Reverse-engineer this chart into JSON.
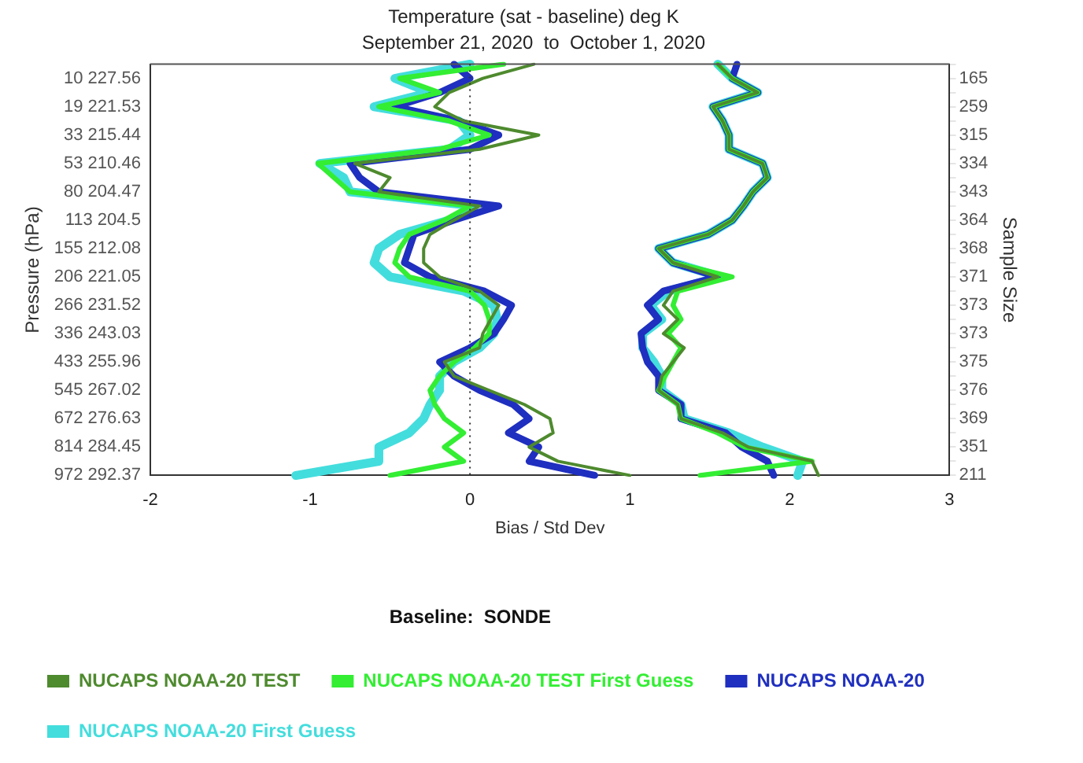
{
  "chart_data": {
    "type": "line",
    "orientation": "horizontal",
    "title": "Temperature (sat - baseline) deg K",
    "subtitle": "September 21, 2020  to  October 1, 2020",
    "xlabel": "Bias / Std Dev",
    "ylabel": "Pressure (hPa)",
    "y2label": "Sample Size",
    "legend_title": "Baseline:  SONDE",
    "legend": "bottom",
    "grid": false,
    "marker": "none",
    "line_style": "solid",
    "categories": [
      null,
      "10 227.56",
      null,
      "19 221.53",
      null,
      "33 215.44",
      null,
      "53 210.46",
      null,
      "80 204.47",
      null,
      "113 204.5",
      null,
      "155 212.08",
      null,
      "206 221.05",
      null,
      "266 231.52",
      null,
      "336 243.03",
      null,
      "433 255.96",
      null,
      "545 267.02",
      null,
      "672 276.63",
      null,
      "814 284.45",
      null,
      "972 292.37"
    ],
    "y2_categories": [
      null,
      "165",
      null,
      "259",
      null,
      "315",
      null,
      "334",
      null,
      "343",
      null,
      "364",
      null,
      "368",
      null,
      "371",
      null,
      "373",
      null,
      "373",
      null,
      "375",
      null,
      "376",
      null,
      "369",
      null,
      "351",
      null,
      "211"
    ],
    "xlim": [
      -2,
      3
    ],
    "xticks": [
      -2,
      -1,
      0,
      1,
      2,
      3
    ],
    "ref_lines": [
      {
        "axis": "x",
        "value": 0,
        "color": "#333333",
        "line_style": "dotted"
      }
    ],
    "series": [
      {
        "name": "NUCAPS NOAA-20 TEST",
        "color": "#4e8a2e",
        "values": [
          0.4,
          0.08,
          -0.13,
          -0.22,
          -0.04,
          0.43,
          0.06,
          -0.72,
          -0.5,
          -0.57,
          0.06,
          -0.1,
          -0.25,
          -0.29,
          -0.29,
          -0.19,
          0.06,
          0.18,
          0.13,
          0.08,
          0.06,
          -0.16,
          -0.1,
          0.12,
          0.34,
          0.5,
          0.52,
          0.37,
          0.55,
          1.0
        ]
      },
      {
        "color": "#4e8a2e",
        "values": [
          1.55,
          1.64,
          1.8,
          1.52,
          1.58,
          1.62,
          1.62,
          1.83,
          1.86,
          1.77,
          1.71,
          1.64,
          1.49,
          1.18,
          1.27,
          1.55,
          1.27,
          1.21,
          1.3,
          1.21,
          1.34,
          1.27,
          1.2,
          1.18,
          1.3,
          1.32,
          1.58,
          1.74,
          2.14,
          2.18
        ]
      },
      {
        "name": "NUCAPS NOAA-20 TEST First Guess",
        "color": "#33ee33",
        "values": [
          0.21,
          -0.44,
          -0.19,
          -0.57,
          -0.13,
          0.12,
          -0.19,
          -0.95,
          -0.85,
          -0.75,
          0,
          -0.16,
          -0.38,
          -0.44,
          -0.47,
          -0.38,
          0,
          0.09,
          0.12,
          0.12,
          0.03,
          -0.1,
          -0.19,
          -0.25,
          -0.22,
          -0.16,
          -0.04,
          -0.16,
          -0.04,
          -0.5
        ]
      },
      {
        "color": "#33ee33",
        "values": [
          1.55,
          1.64,
          1.8,
          1.52,
          1.58,
          1.62,
          1.62,
          1.83,
          1.86,
          1.77,
          1.71,
          1.64,
          1.49,
          1.18,
          1.27,
          1.64,
          1.3,
          1.27,
          1.32,
          1.24,
          1.32,
          1.27,
          1.22,
          1.18,
          1.3,
          1.32,
          1.55,
          1.72,
          2.14,
          1.44
        ]
      },
      {
        "name": "NUCAPS NOAA-20",
        "color": "#1f2fbf",
        "values": [
          -0.1,
          0,
          -0.19,
          -0.47,
          -0.07,
          0.18,
          0,
          -0.75,
          -0.69,
          -0.57,
          0.18,
          -0.1,
          -0.35,
          -0.38,
          -0.41,
          -0.25,
          0.09,
          0.26,
          0.21,
          0.15,
          0,
          -0.19,
          -0.1,
          0.06,
          0.27,
          0.37,
          0.24,
          0.43,
          0.37,
          0.78
        ]
      },
      {
        "color": "#1f2fbf",
        "values": [
          1.67,
          1.64,
          1.8,
          1.52,
          1.58,
          1.62,
          1.62,
          1.83,
          1.86,
          1.77,
          1.71,
          1.64,
          1.49,
          1.18,
          1.27,
          1.55,
          1.21,
          1.11,
          1.18,
          1.07,
          1.08,
          1.11,
          1.18,
          1.18,
          1.32,
          1.32,
          1.6,
          1.7,
          1.86,
          1.9
        ]
      },
      {
        "name": "NUCAPS NOAA-20 First Guess",
        "color": "#44dddd",
        "values": [
          0,
          -0.47,
          -0.25,
          -0.6,
          -0.07,
          0,
          -0.13,
          -0.94,
          -0.79,
          -0.75,
          0.03,
          -0.13,
          -0.44,
          -0.57,
          -0.6,
          -0.5,
          -0.04,
          0.15,
          0.17,
          0.15,
          0.06,
          -0.1,
          -0.19,
          -0.19,
          -0.25,
          -0.29,
          -0.38,
          -0.57,
          -0.57,
          -1.09
        ]
      },
      {
        "color": "#44dddd",
        "values": [
          1.55,
          1.64,
          1.8,
          1.52,
          1.58,
          1.62,
          1.62,
          1.83,
          1.86,
          1.77,
          1.71,
          1.64,
          1.49,
          1.18,
          1.27,
          1.57,
          1.24,
          1.13,
          1.2,
          1.08,
          1.08,
          1.15,
          1.2,
          1.2,
          1.32,
          1.34,
          1.62,
          1.83,
          2.08,
          2.05
        ]
      }
    ]
  }
}
